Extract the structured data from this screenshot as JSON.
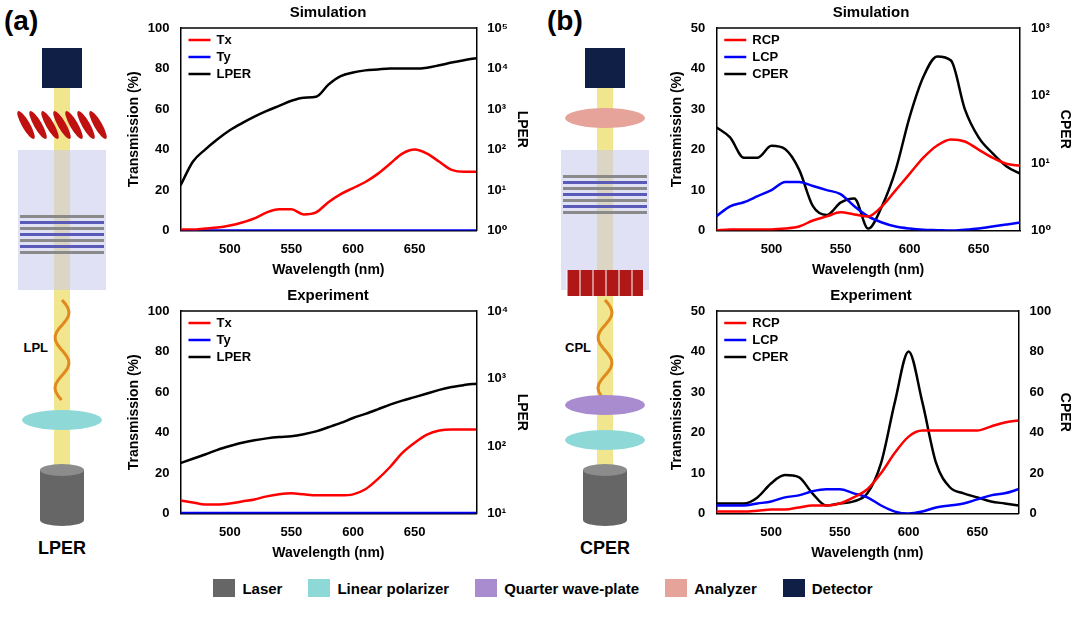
{
  "panels": [
    {
      "letter": "(a)",
      "beam_label": "LPL",
      "caption": "LPER"
    },
    {
      "letter": "(b)",
      "beam_label": "CPL",
      "caption": "CPER"
    }
  ],
  "component_legend": [
    {
      "name": "Laser",
      "color": "#666666"
    },
    {
      "name": "Linear polarizer",
      "color": "#8fd8d8"
    },
    {
      "name": "Quarter wave-plate",
      "color": "#a98bd0"
    },
    {
      "name": "Analyzer",
      "color": "#e6a39a"
    },
    {
      "name": "Detector",
      "color": "#0f1f45"
    }
  ],
  "chart_data": [
    {
      "type": "line",
      "title": "Simulation",
      "x_label": "Wavelength (nm)",
      "y_label": "Transmission (%)",
      "y2_label": "LPER",
      "x": [
        460,
        470,
        480,
        490,
        500,
        510,
        520,
        530,
        540,
        550,
        560,
        570,
        580,
        590,
        600,
        610,
        620,
        630,
        640,
        650,
        660,
        670,
        680,
        690,
        700
      ],
      "xlim": [
        460,
        700
      ],
      "xticks": [
        500,
        550,
        600,
        650
      ],
      "ylim": [
        0,
        100
      ],
      "yticks": [
        0,
        20,
        40,
        60,
        80,
        100
      ],
      "y2lim": [
        1,
        100000
      ],
      "y2ticks": [
        {
          "value": 1,
          "label": "10⁰"
        },
        {
          "value": 10,
          "label": "10¹"
        },
        {
          "value": 100,
          "label": "10²"
        },
        {
          "value": 1000,
          "label": "10³"
        },
        {
          "value": 10000,
          "label": "10⁴"
        },
        {
          "value": 100000,
          "label": "10⁵"
        }
      ],
      "log": "y2",
      "grid": false,
      "legend": "upper left",
      "series": [
        {
          "name": "Tx",
          "color": "#ff0000",
          "values": [
            0.5,
            0.5,
            1,
            1.5,
            2.5,
            4,
            6,
            9,
            10.5,
            10.5,
            8,
            9,
            14,
            18,
            21,
            24,
            28,
            33,
            38,
            40,
            38,
            34,
            30,
            29,
            29
          ]
        },
        {
          "name": "Ty",
          "color": "#0000ff",
          "values": [
            0,
            0,
            0,
            0,
            0,
            0,
            0,
            0,
            0,
            0,
            0,
            0,
            0,
            0,
            0,
            0,
            0,
            0,
            0,
            0,
            0,
            0,
            0,
            0,
            0
          ]
        },
        {
          "name": "LPER",
          "color": "#000000",
          "axis": "y2",
          "values": [
            13,
            50,
            100,
            180,
            300,
            450,
            650,
            900,
            1200,
            1600,
            1900,
            2000,
            4000,
            6500,
            8000,
            9000,
            9500,
            10000,
            10000,
            10000,
            10500,
            12000,
            14000,
            16000,
            18000
          ]
        }
      ]
    },
    {
      "type": "line",
      "title": "Experiment",
      "x_label": "Wavelength (nm)",
      "y_label": "Transmission (%)",
      "y2_label": "LPER",
      "x": [
        460,
        470,
        480,
        490,
        500,
        510,
        520,
        530,
        540,
        550,
        560,
        570,
        580,
        590,
        600,
        610,
        620,
        630,
        640,
        650,
        660,
        670,
        680,
        690,
        700
      ],
      "xlim": [
        460,
        700
      ],
      "xticks": [
        500,
        550,
        600,
        650
      ],
      "ylim": [
        0,
        100
      ],
      "yticks": [
        0,
        20,
        40,
        60,
        80,
        100
      ],
      "y2lim": [
        10,
        10000
      ],
      "y2ticks": [
        {
          "value": 10,
          "label": "10¹"
        },
        {
          "value": 100,
          "label": "10²"
        },
        {
          "value": 1000,
          "label": "10³"
        },
        {
          "value": 10000,
          "label": "10⁴"
        }
      ],
      "log": "y2",
      "grid": false,
      "legend": "upper left",
      "series": [
        {
          "name": "Tx",
          "color": "#ff0000",
          "values": [
            6.5,
            5.5,
            4.5,
            4.5,
            5,
            6,
            7,
            8.5,
            9.5,
            10,
            9.5,
            9,
            9,
            9,
            9.5,
            12,
            17,
            23,
            30,
            35,
            39,
            41,
            41.5,
            41.5,
            41.5
          ]
        },
        {
          "name": "Ty",
          "color": "#0000ff",
          "values": [
            0.3,
            0.3,
            0.3,
            0.3,
            0.3,
            0.3,
            0.3,
            0.3,
            0.3,
            0.3,
            0.3,
            0.3,
            0.3,
            0.3,
            0.3,
            0.3,
            0.3,
            0.3,
            0.3,
            0.3,
            0.3,
            0.3,
            0.3,
            0.3,
            0.3
          ]
        },
        {
          "name": "LPER",
          "color": "#000000",
          "axis": "y2",
          "values": [
            56,
            65,
            75,
            88,
            100,
            112,
            122,
            130,
            136,
            140,
            150,
            165,
            190,
            220,
            260,
            300,
            350,
            410,
            470,
            530,
            600,
            680,
            750,
            800,
            840
          ]
        }
      ]
    },
    {
      "type": "line",
      "title": "Simulation",
      "x_label": "Wavelength (nm)",
      "y_label": "Transmission (%)",
      "y2_label": "CPER",
      "x": [
        460,
        470,
        480,
        490,
        500,
        510,
        520,
        530,
        540,
        550,
        560,
        570,
        580,
        590,
        600,
        610,
        620,
        630,
        640,
        650,
        660,
        670,
        680
      ],
      "xlim": [
        460,
        680
      ],
      "xticks": [
        500,
        550,
        600,
        650
      ],
      "ylim": [
        0,
        50
      ],
      "yticks": [
        0,
        10,
        20,
        30,
        40,
        50
      ],
      "y2lim": [
        1,
        1000
      ],
      "y2ticks": [
        {
          "value": 1,
          "label": "10⁰"
        },
        {
          "value": 10,
          "label": "10¹"
        },
        {
          "value": 100,
          "label": "10²"
        },
        {
          "value": 1000,
          "label": "10³"
        }
      ],
      "log": "y2",
      "grid": false,
      "legend": "upper left",
      "series": [
        {
          "name": "RCP",
          "color": "#ff0000",
          "values": [
            0,
            0.3,
            0.3,
            0.3,
            0.3,
            0.5,
            1,
            2.5,
            3.5,
            4.5,
            4,
            3.5,
            6,
            10,
            14,
            18,
            21,
            22.5,
            22,
            20,
            18,
            16.5,
            16
          ]
        },
        {
          "name": "LCP",
          "color": "#0000ff",
          "values": [
            3.5,
            6,
            7,
            8.5,
            10,
            12,
            12,
            11,
            10,
            9,
            6,
            3.5,
            2,
            1,
            0.5,
            0.2,
            0.1,
            0,
            0.2,
            0.5,
            1,
            1.5,
            2
          ]
        },
        {
          "name": "CPER",
          "color": "#000000",
          "axis": "y2",
          "values": [
            34,
            24,
            12,
            12,
            18,
            16,
            8,
            2.3,
            1.7,
            2.6,
            3,
            1.07,
            2.3,
            8,
            48,
            190,
            380,
            330,
            63,
            24,
            14,
            9,
            7
          ]
        }
      ]
    },
    {
      "type": "line",
      "title": "Experiment",
      "x_label": "Wavelength (nm)",
      "y_label": "Transmission (%)",
      "y2_label": "CPER",
      "x": [
        460,
        470,
        480,
        490,
        500,
        510,
        520,
        530,
        540,
        550,
        560,
        570,
        580,
        590,
        600,
        610,
        620,
        630,
        640,
        650,
        660,
        670,
        680
      ],
      "xlim": [
        460,
        680
      ],
      "xticks": [
        500,
        550,
        600,
        650
      ],
      "ylim": [
        0,
        50
      ],
      "yticks": [
        0,
        10,
        20,
        30,
        40,
        50
      ],
      "y2lim": [
        0,
        100
      ],
      "y2ticks": [
        0,
        20,
        40,
        60,
        80,
        100
      ],
      "grid": false,
      "legend": "upper left",
      "series": [
        {
          "name": "RCP",
          "color": "#ff0000",
          "values": [
            0.5,
            0.5,
            0.5,
            0.7,
            1,
            1,
            1.5,
            2,
            2,
            2.5,
            4,
            6,
            10,
            15,
            19,
            20.5,
            20.5,
            20.5,
            20.5,
            20.5,
            21.5,
            22.5,
            23
          ]
        },
        {
          "name": "LCP",
          "color": "#0000ff",
          "values": [
            2,
            2,
            2,
            2.5,
            3,
            4,
            4.5,
            5.5,
            6,
            6,
            5,
            4,
            2,
            0.5,
            0,
            0.5,
            1.5,
            2,
            2.5,
            3.5,
            4.5,
            5,
            6
          ]
        },
        {
          "name": "CPER",
          "color": "#000000",
          "axis": "y2",
          "values": [
            5,
            5,
            5,
            8,
            15,
            19,
            18,
            10,
            4,
            5,
            6,
            10,
            25,
            55,
            80,
            55,
            25,
            13,
            10,
            8,
            6,
            5,
            4
          ]
        }
      ]
    }
  ]
}
